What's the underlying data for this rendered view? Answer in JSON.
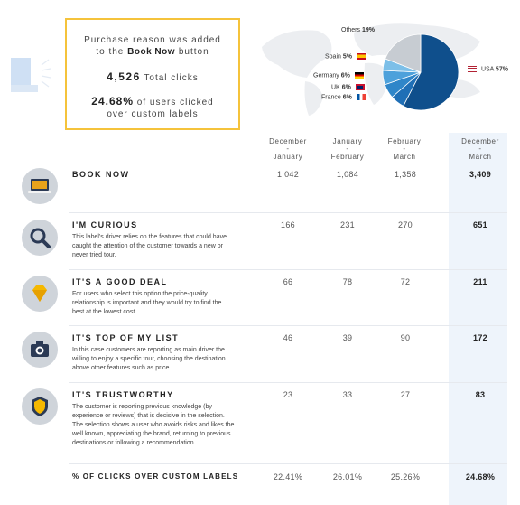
{
  "summary": {
    "line1": "Purchase reason was added",
    "line2_prefix": "to the",
    "line2_bold": "Book Now",
    "line2_suffix": "button",
    "total_clicks_value": "4,526",
    "total_clicks_label": "Total clicks",
    "pct_value": "24.68%",
    "pct_label_1": "of users clicked",
    "pct_label_2": "over custom labels"
  },
  "pie": {
    "slices": [
      {
        "name": "USA",
        "pct": "57%",
        "value": 57,
        "color": "#0f4f8c"
      },
      {
        "name": "France",
        "pct": "6%",
        "value": 6,
        "color": "#1f6fb6"
      },
      {
        "name": "UK",
        "pct": "6%",
        "value": 6,
        "color": "#2f86c9"
      },
      {
        "name": "Germany",
        "pct": "6%",
        "value": 6,
        "color": "#4da1db"
      },
      {
        "name": "Spain",
        "pct": "5%",
        "value": 5,
        "color": "#7cbfe8"
      },
      {
        "name": "Others",
        "pct": "19%",
        "value": 19,
        "color": "#c7ccd2"
      }
    ],
    "usa_label": "USA",
    "usa_pct": "57%",
    "others_label": "Others",
    "others_pct": "19%",
    "spain_label": "Spain",
    "spain_pct": "5%",
    "germany_label": "Germany",
    "germany_pct": "6%",
    "uk_label": "UK",
    "uk_pct": "6%",
    "france_label": "France",
    "france_pct": "6%"
  },
  "columns": [
    {
      "line1": "December",
      "line2": "January"
    },
    {
      "line1": "January",
      "line2": "February"
    },
    {
      "line1": "February",
      "line2": "March"
    },
    {
      "line1": "December",
      "line2": "March"
    }
  ],
  "rows": [
    {
      "title": "BOOK NOW",
      "desc": "",
      "icon": "laptop-icon",
      "values": [
        "1,042",
        "1,084",
        "1,358",
        "3,409"
      ]
    },
    {
      "title": "I'M CURIOUS",
      "desc": "This label's driver relies on the features that could have caught the attention of the customer towards a new or never tried tour.",
      "icon": "magnifier-icon",
      "values": [
        "166",
        "231",
        "270",
        "651"
      ]
    },
    {
      "title": "IT'S A GOOD DEAL",
      "desc": "For users who select this option the price-quality relationship is important and they would try to find the best at the lowest cost.",
      "icon": "diamond-icon",
      "values": [
        "66",
        "78",
        "72",
        "211"
      ]
    },
    {
      "title": "IT'S TOP OF MY LIST",
      "desc": "In this case customers are reporting as main driver the willing to enjoy a specific tour, choosing the destination above other features such as price.",
      "icon": "camera-icon",
      "values": [
        "46",
        "39",
        "90",
        "172"
      ]
    },
    {
      "title": "IT'S TRUSTWORTHY",
      "desc": "The customer is reporting previous knowledge (by experience or reviews) that is decisive in the selection. The selection shows a user who avoids risks and likes the well known, appreciating the brand, returning to previous destinations or following a recommendation.",
      "icon": "shield-icon",
      "values": [
        "23",
        "33",
        "27",
        "83"
      ]
    }
  ],
  "footer": {
    "title": "% OF CLICKS OVER CUSTOM LABELS",
    "values": [
      "22.41%",
      "26.01%",
      "25.26%",
      "24.68%"
    ]
  }
}
